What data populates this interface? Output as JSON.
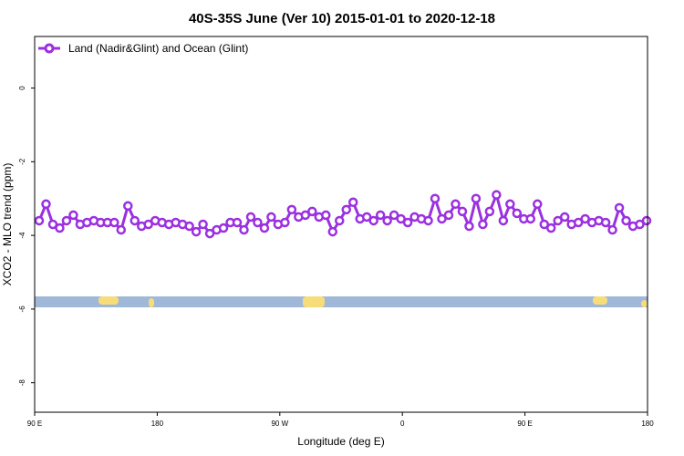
{
  "chart_data": {
    "type": "line",
    "title": "40S-35S June (Ver 10)   2015-01-01 to 2020-12-18",
    "xlabel": "Longitude (deg E)",
    "ylabel": "XCO2 - MLO trend (ppm)",
    "x_ticks": [
      "90 E",
      "180",
      "90 W",
      "0",
      "90 E",
      "180"
    ],
    "y_ticks": [
      "0",
      "-2",
      "-4",
      "-6",
      "-8"
    ],
    "y_tick_values": [
      0,
      -2,
      -4,
      -6,
      -8
    ],
    "ylim": [
      -8.8,
      1.4
    ],
    "grid": false,
    "legend_position": "top-left",
    "series": [
      {
        "name": "Land (Nadir&Glint) and Ocean (Glint)",
        "color": "#9b30e0",
        "values": [
          -3.6,
          -3.15,
          -3.7,
          -3.8,
          -3.6,
          -3.45,
          -3.7,
          -3.65,
          -3.6,
          -3.65,
          -3.65,
          -3.65,
          -3.85,
          -3.2,
          -3.6,
          -3.75,
          -3.7,
          -3.6,
          -3.65,
          -3.7,
          -3.65,
          -3.7,
          -3.75,
          -3.9,
          -3.7,
          -3.95,
          -3.85,
          -3.8,
          -3.65,
          -3.65,
          -3.85,
          -3.5,
          -3.65,
          -3.8,
          -3.5,
          -3.7,
          -3.65,
          -3.3,
          -3.5,
          -3.45,
          -3.35,
          -3.5,
          -3.45,
          -3.9,
          -3.6,
          -3.3,
          -3.1,
          -3.55,
          -3.5,
          -3.6,
          -3.45,
          -3.6,
          -3.45,
          -3.55,
          -3.65,
          -3.5,
          -3.55,
          -3.6,
          -3.0,
          -3.55,
          -3.45,
          -3.15,
          -3.35,
          -3.75,
          -3.0,
          -3.7,
          -3.35,
          -2.9,
          -3.6,
          -3.15,
          -3.4,
          -3.55,
          -3.55,
          -3.15,
          -3.7,
          -3.8,
          -3.6,
          -3.5,
          -3.7,
          -3.65,
          -3.55,
          -3.65,
          -3.6,
          -3.65,
          -3.85,
          -3.25,
          -3.6,
          -3.75,
          -3.7,
          -3.6
        ]
      }
    ],
    "background_map": {
      "ocean_color": "#a0b8d8",
      "land_color": "#f7dc7a"
    }
  }
}
